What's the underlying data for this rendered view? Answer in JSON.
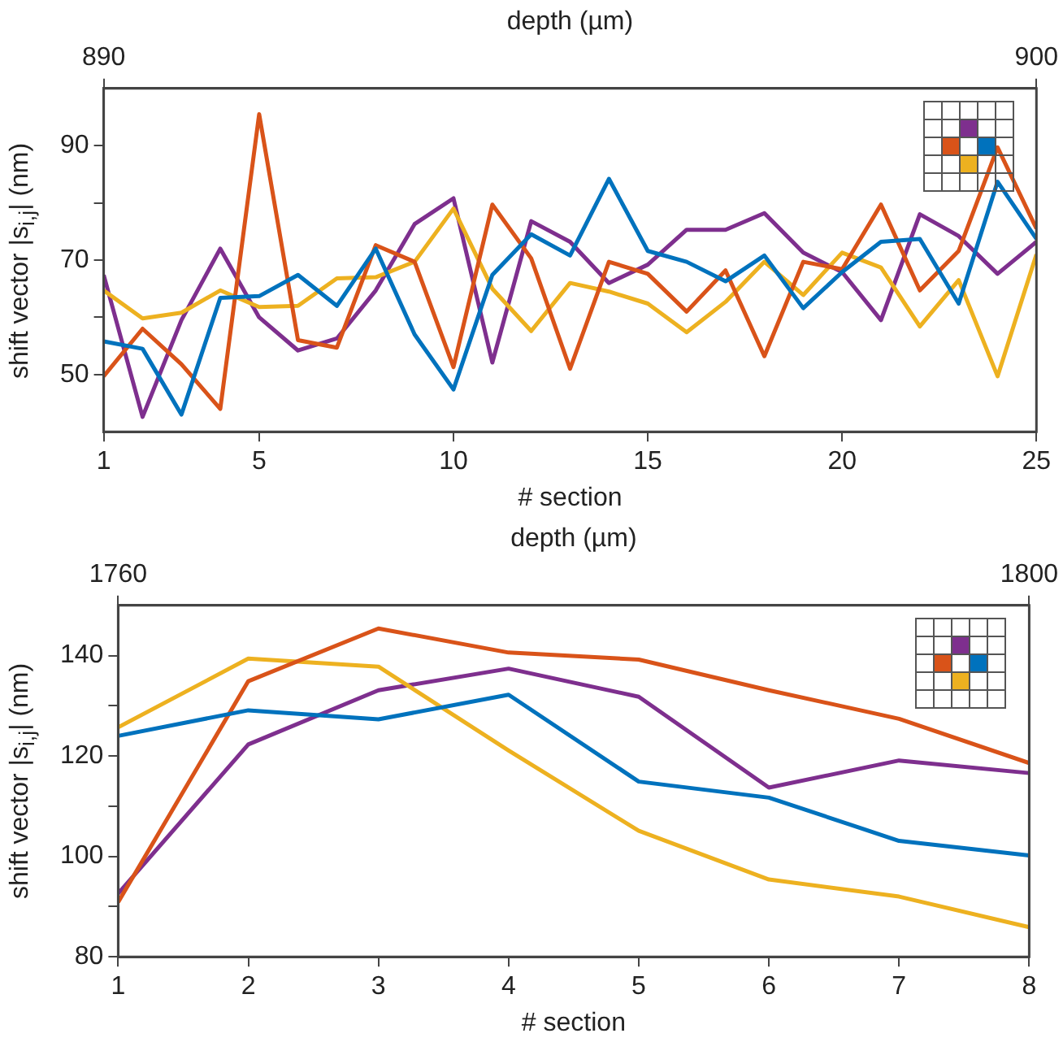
{
  "chart_data": [
    {
      "type": "line",
      "xlabel": "# section",
      "ylabel": "shift vector |s$_{i,j}$| (nm)",
      "x2label": "depth (µm)",
      "x": [
        1,
        2,
        3,
        4,
        5,
        6,
        7,
        8,
        9,
        10,
        11,
        12,
        13,
        14,
        15,
        16,
        17,
        18,
        19,
        20,
        21,
        22,
        23,
        24,
        25
      ],
      "xlim": [
        1,
        25
      ],
      "xticks": [
        1,
        5,
        10,
        15,
        20,
        25
      ],
      "x2lim": [
        890,
        900
      ],
      "x2ticks": [
        890,
        900
      ],
      "ylim": [
        40,
        100
      ],
      "yticks": [
        {
          "value": 50,
          "label": "50"
        },
        {
          "value": 60,
          "label": null
        },
        {
          "value": 70,
          "label": "70"
        },
        {
          "value": 80,
          "label": null
        },
        {
          "value": 90,
          "label": "90"
        }
      ],
      "grid": false,
      "legend": false,
      "marker": "none",
      "line_style": "solid",
      "series": [
        {
          "color": "#0072bd",
          "values": [
            55.8,
            54.5,
            43,
            63.4,
            63.7,
            67.4,
            62,
            72,
            57,
            47.4,
            67.4,
            74.5,
            70.8,
            84.2,
            71.6,
            69.7,
            66.3,
            70.8,
            61.6,
            67.9,
            73.2,
            73.7,
            62.4,
            83.7,
            73.7
          ]
        },
        {
          "color": "#d95319",
          "values": [
            49.7,
            58,
            51.8,
            44,
            95.5,
            56,
            54.7,
            72.6,
            69.7,
            51.3,
            79.7,
            70.3,
            51,
            69.7,
            67.6,
            61,
            68.2,
            53.2,
            69.7,
            68.4,
            79.7,
            64.7,
            71.6,
            89.7,
            75.5
          ]
        },
        {
          "color": "#edb120",
          "values": [
            64.7,
            59.8,
            60.8,
            64.7,
            61.8,
            62,
            66.8,
            67,
            69.7,
            79,
            65,
            57.6,
            66,
            64.5,
            62.4,
            57.4,
            62.7,
            69.7,
            63.9,
            71.3,
            68.7,
            58.4,
            66.5,
            49.7,
            71
          ]
        },
        {
          "color": "#7e2f8e",
          "values": [
            67.4,
            42.6,
            59.5,
            72,
            60,
            54.2,
            56.3,
            64.7,
            76.3,
            80.8,
            52.1,
            76.8,
            73.2,
            66,
            69.2,
            75.3,
            75.3,
            78.2,
            71.3,
            67.9,
            59.5,
            78,
            74.2,
            67.6,
            73.2
          ]
        }
      ]
    },
    {
      "type": "line",
      "xlabel": "# section",
      "ylabel": "shift vector |s$_{i,j}$| (nm)",
      "x2label": "depth (µm)",
      "x": [
        1,
        2,
        3,
        4,
        5,
        6,
        7,
        8
      ],
      "xlim": [
        1,
        8
      ],
      "xticks": [
        1,
        2,
        3,
        4,
        5,
        6,
        7,
        8
      ],
      "x2lim": [
        1760,
        1800
      ],
      "x2ticks": [
        1760,
        1800
      ],
      "ylim": [
        80,
        150
      ],
      "yticks": [
        80,
        {
          "value": 90,
          "label": null
        },
        100,
        {
          "value": 110,
          "label": null
        },
        120,
        {
          "value": 130,
          "label": null
        },
        140
      ],
      "grid": false,
      "legend": false,
      "marker": "none",
      "line_style": "solid",
      "series": [
        {
          "color": "#0072bd",
          "values": [
            124,
            129.1,
            127.3,
            132.2,
            114.9,
            111.7,
            103.1,
            100.2
          ]
        },
        {
          "color": "#d95319",
          "values": [
            90.9,
            134.9,
            145.4,
            140.6,
            139.2,
            133.1,
            127.4,
            118.6
          ]
        },
        {
          "color": "#edb120",
          "values": [
            125.7,
            139.4,
            137.8,
            121.1,
            105.1,
            95.4,
            92,
            85.9
          ]
        },
        {
          "color": "#7e2f8e",
          "values": [
            92.6,
            122.3,
            133.1,
            137.4,
            131.8,
            113.7,
            119.1,
            116.6
          ]
        }
      ]
    }
  ]
}
